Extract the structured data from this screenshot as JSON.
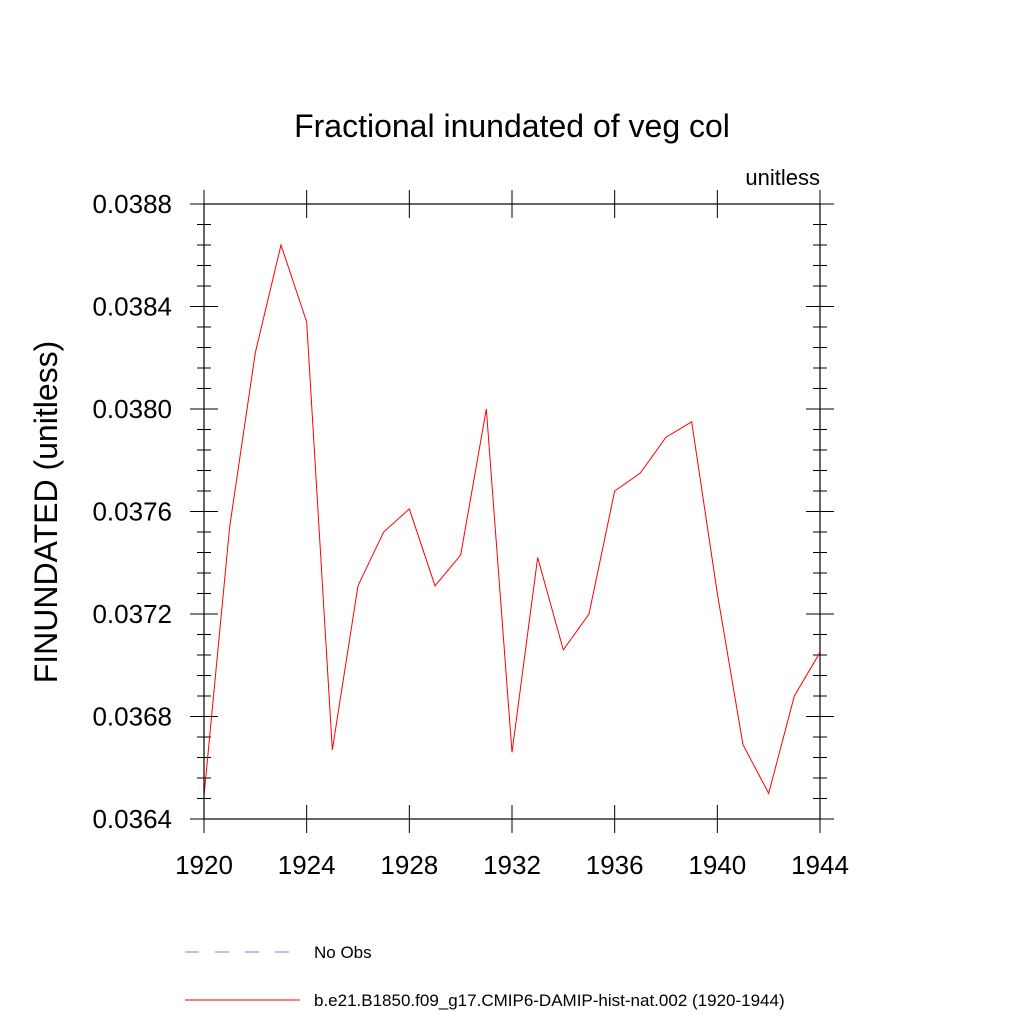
{
  "chart_data": {
    "type": "line",
    "title": "Fractional inundated of veg col",
    "units_label": "unitless",
    "ylabel": "FINUNDATED  (unitless)",
    "xlabel": "",
    "xlim": [
      1920,
      1944
    ],
    "ylim": [
      0.0364,
      0.0388
    ],
    "xticks": [
      1920,
      1924,
      1928,
      1932,
      1936,
      1940,
      1944
    ],
    "xtick_labels": [
      "1920",
      "1924",
      "1928",
      "1932",
      "1936",
      "1940",
      "1944"
    ],
    "yticks": [
      0.0364,
      0.0368,
      0.0372,
      0.0376,
      0.038,
      0.0384,
      0.0388
    ],
    "ytick_labels": [
      "0.0364",
      "0.0368",
      "0.0372",
      "0.0376",
      "0.0380",
      "0.0384",
      "0.0388"
    ],
    "grid": false,
    "legend_position": "bottom",
    "x": [
      1920,
      1921,
      1922,
      1923,
      1924,
      1925,
      1926,
      1927,
      1928,
      1929,
      1930,
      1931,
      1932,
      1933,
      1934,
      1935,
      1936,
      1937,
      1938,
      1939,
      1940,
      1941,
      1942,
      1943,
      1944
    ],
    "series": [
      {
        "name": "b.e21.B1850.f09_g17.CMIP6-DAMIP-hist-nat.002 (1920-1944)",
        "color": "#ff0000",
        "style": "solid",
        "values": [
          0.03649,
          0.03754,
          0.03822,
          0.03864,
          0.03834,
          0.03667,
          0.03731,
          0.03752,
          0.03761,
          0.03731,
          0.03743,
          0.038,
          0.03666,
          0.03742,
          0.03706,
          0.0372,
          0.03768,
          0.03775,
          0.03789,
          0.03795,
          0.03728,
          0.03669,
          0.0365,
          0.03688,
          0.03705
        ]
      }
    ],
    "legend": [
      {
        "label": "No Obs",
        "color": "#8080cc",
        "style": "dashed"
      },
      {
        "label": "b.e21.B1850.f09_g17.CMIP6-DAMIP-hist-nat.002 (1920-1944)",
        "color": "#ff0000",
        "style": "solid"
      }
    ]
  }
}
